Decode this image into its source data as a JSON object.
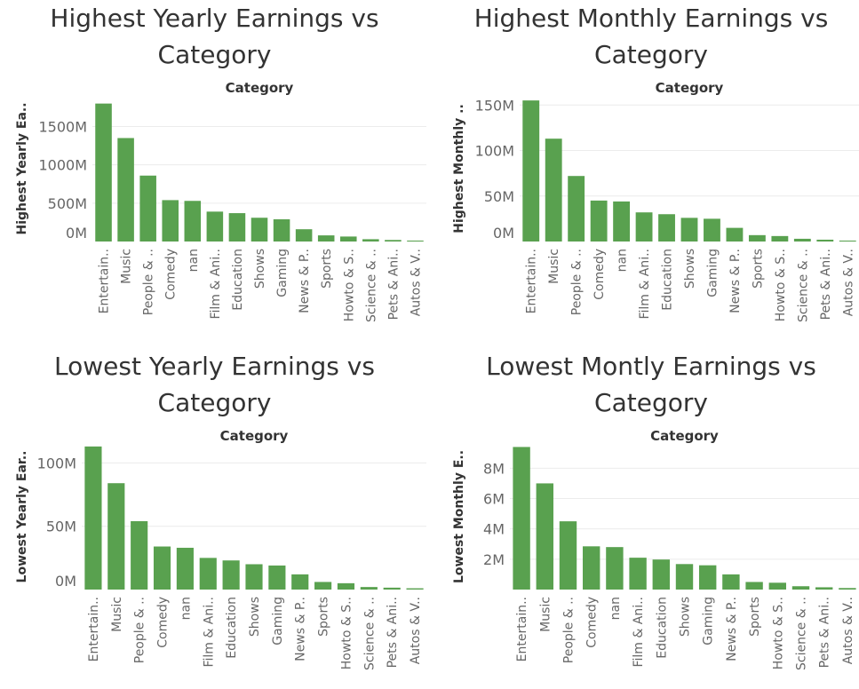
{
  "colors": {
    "bar": "#59a14f"
  },
  "chart_data": [
    {
      "type": "bar",
      "title": "Highest Yearly Earnings vs Category",
      "header": "Category",
      "ylabel": "Highest Yearly Ea..",
      "ylim": [
        0,
        1900
      ],
      "yticks": [
        0,
        500,
        1000,
        1500
      ],
      "ytick_labels": [
        "0M",
        "500M",
        "1000M",
        "1500M"
      ],
      "categories": [
        "Entertain..",
        "Music",
        "People & ..",
        "Comedy",
        "nan",
        "Film & Ani..",
        "Education",
        "Shows",
        "Gaming",
        "News & P..",
        "Sports",
        "Howto & S..",
        "Science & ..",
        "Pets & Ani..",
        "Autos & V.."
      ],
      "values": [
        1800,
        1350,
        860,
        540,
        530,
        390,
        370,
        310,
        290,
        160,
        80,
        65,
        30,
        20,
        12
      ]
    },
    {
      "type": "bar",
      "title": "Highest Monthly Earnings vs Category",
      "header": "Category",
      "ylabel": "Highest Monthly ..",
      "ylim": [
        0,
        160
      ],
      "yticks": [
        0,
        50,
        100,
        150
      ],
      "ytick_labels": [
        "0M",
        "50M",
        "100M",
        "150M"
      ],
      "categories": [
        "Entertain..",
        "Music",
        "People & ..",
        "Comedy",
        "nan",
        "Film & Ani..",
        "Education",
        "Shows",
        "Gaming",
        "News & P..",
        "Sports",
        "Howto & S..",
        "Science & ..",
        "Pets & Ani..",
        "Autos & V.."
      ],
      "values": [
        155,
        113,
        72,
        45,
        44,
        32,
        30,
        26,
        25,
        15,
        7,
        6,
        3,
        2,
        1
      ]
    },
    {
      "type": "bar",
      "title": "Lowest Yearly Earnings vs Category",
      "header": "Category",
      "ylabel": "Lowest Yearly Ear..",
      "ylim": [
        0,
        115
      ],
      "yticks": [
        0,
        50,
        100
      ],
      "ytick_labels": [
        "0M",
        "50M",
        "100M"
      ],
      "categories": [
        "Entertain..",
        "Music",
        "People & ..",
        "Comedy",
        "nan",
        "Film & Ani..",
        "Education",
        "Shows",
        "Gaming",
        "News & P..",
        "Sports",
        "Howto & S..",
        "Science & ..",
        "Pets & Ani..",
        "Autos & V.."
      ],
      "values": [
        113,
        84,
        54,
        34,
        33,
        25,
        23,
        20,
        19,
        12,
        6,
        5,
        2,
        1.5,
        1
      ]
    },
    {
      "type": "bar",
      "title": "Lowest Montly Earnings vs Category",
      "header": "Category",
      "ylabel": "Lowest Monthly E..",
      "ylim": [
        0,
        9.6
      ],
      "yticks": [
        2,
        4,
        6,
        8
      ],
      "ytick_labels": [
        "2M",
        "4M",
        "6M",
        "8M"
      ],
      "categories": [
        "Entertain..",
        "Music",
        "People & ..",
        "Comedy",
        "nan",
        "Film & Ani..",
        "Education",
        "Shows",
        "Gaming",
        "News & P..",
        "Sports",
        "Howto & S..",
        "Science & ..",
        "Pets & Ani..",
        "Autos & V.."
      ],
      "values": [
        9.4,
        7.0,
        4.5,
        2.85,
        2.8,
        2.1,
        1.98,
        1.68,
        1.6,
        1.0,
        0.5,
        0.45,
        0.22,
        0.15,
        0.1
      ]
    }
  ]
}
